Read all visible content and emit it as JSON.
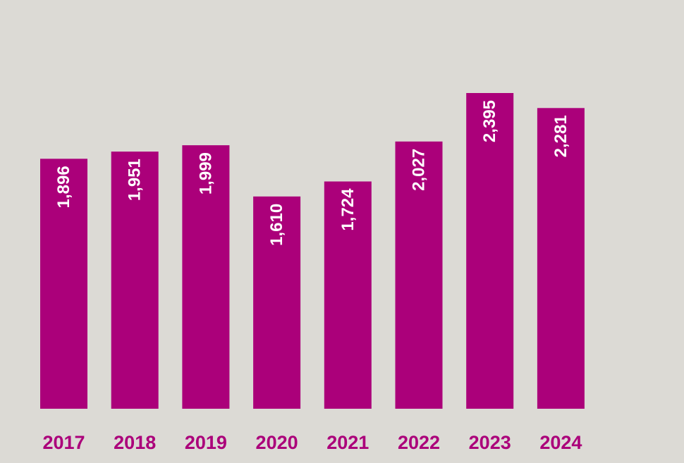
{
  "chart_data": {
    "type": "bar",
    "categories": [
      "2017",
      "2018",
      "2019",
      "2020",
      "2021",
      "2022",
      "2023",
      "2024"
    ],
    "values": [
      1896,
      1951,
      1999,
      1610,
      1724,
      2027,
      2395,
      2281
    ],
    "value_labels": [
      "1,896",
      "1,951",
      "1,999",
      "1,610",
      "1,724",
      "2,027",
      "2,395",
      "2,281"
    ],
    "ylim": [
      0,
      2500
    ],
    "grid": false,
    "legend": "none",
    "orientation": "vertical",
    "value_label_position": "inside-top-rotated"
  },
  "colors": {
    "background": "#dcdad5",
    "bar": "#ab007a",
    "bar_label": "#ffffff",
    "tick_label": "#ab007a"
  }
}
